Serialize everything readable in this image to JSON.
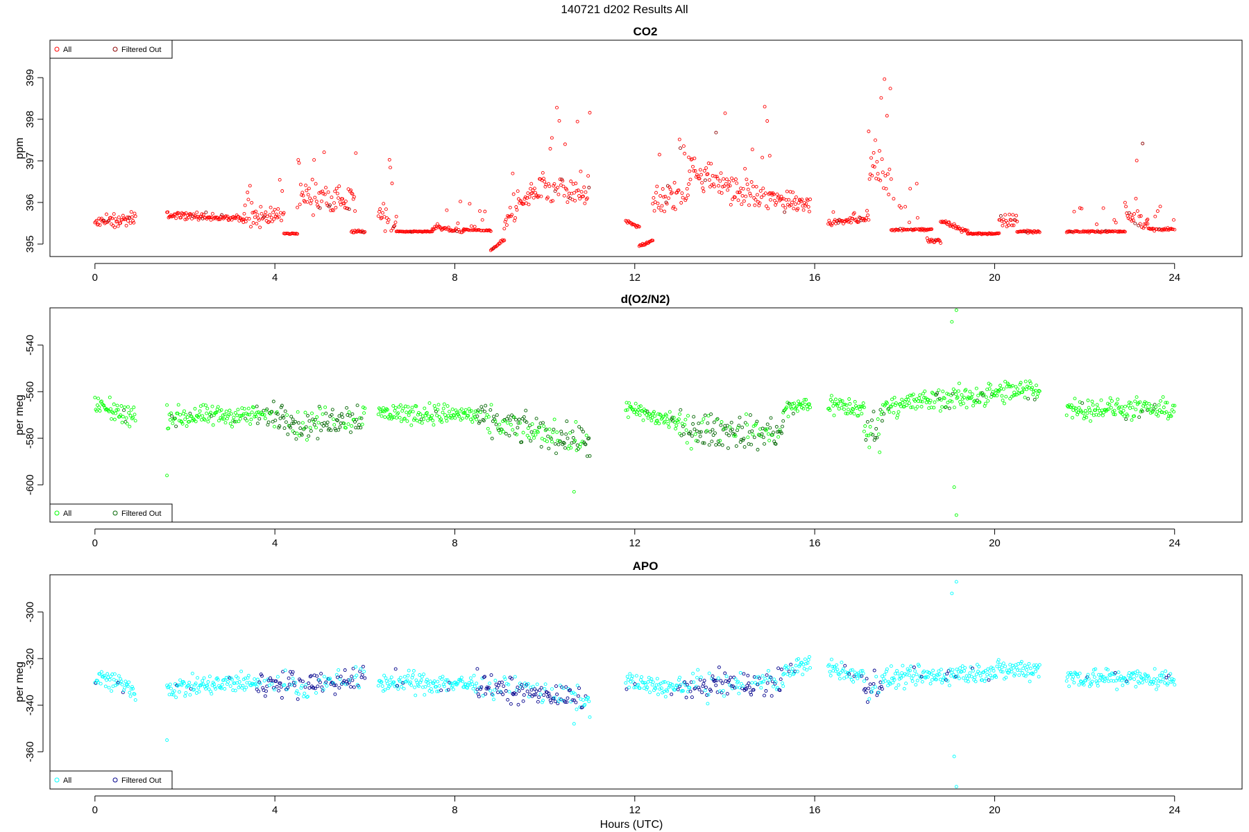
{
  "page_title": "140721   d202   Results All",
  "x_axis_label": "Hours (UTC)",
  "colors": {
    "co2_all": "#ff0000",
    "co2_filtered": "#8b0000",
    "o2_all": "#00ff00",
    "o2_filtered": "#006400",
    "apo_all": "#00ffff",
    "apo_filtered": "#00008b"
  },
  "chart_data": [
    {
      "type": "scatter",
      "title": "CO2",
      "ylabel": "ppm",
      "xlim": [
        -1,
        25.5
      ],
      "ylim": [
        394.7,
        399.9
      ],
      "xticks": [
        0,
        4,
        8,
        12,
        16,
        20,
        24
      ],
      "yticks": [
        395,
        396,
        397,
        398,
        399
      ],
      "legend": [
        "All",
        "Filtered Out"
      ],
      "legend_position": "top-left",
      "segments": [
        {
          "x": [
            0.0,
            0.9
          ],
          "y0": 395.5,
          "y1": 395.6,
          "noise": 0.25,
          "spike": 0.15,
          "filtered": false
        },
        {
          "x": [
            1.6,
            3.3
          ],
          "y0": 395.7,
          "y1": 395.6,
          "noise": 0.12,
          "spike": 0.1,
          "filtered": false
        },
        {
          "x": [
            3.3,
            4.2
          ],
          "y0": 395.6,
          "y1": 395.7,
          "noise": 0.35,
          "spike": 1.2,
          "filtered": false
        },
        {
          "x": [
            4.2,
            4.5
          ],
          "y0": 395.25,
          "y1": 395.25,
          "noise": 0.02,
          "spike": 0,
          "filtered": false
        },
        {
          "x": [
            4.5,
            5.8
          ],
          "y0": 396.2,
          "y1": 396.0,
          "noise": 0.55,
          "spike": 1.4,
          "filtered": false
        },
        {
          "x": [
            5.7,
            6.0
          ],
          "y0": 395.3,
          "y1": 395.3,
          "noise": 0.05,
          "spike": 0,
          "filtered": false
        },
        {
          "x": [
            6.3,
            6.7
          ],
          "y0": 395.8,
          "y1": 395.4,
          "noise": 0.5,
          "spike": 1.8,
          "filtered": false
        },
        {
          "x": [
            6.7,
            7.5
          ],
          "y0": 395.3,
          "y1": 395.3,
          "noise": 0.02,
          "spike": 0,
          "filtered": false
        },
        {
          "x": [
            7.5,
            8.2
          ],
          "y0": 395.4,
          "y1": 395.3,
          "noise": 0.08,
          "spike": 0.8,
          "filtered": false
        },
        {
          "x": [
            8.2,
            8.8
          ],
          "y0": 395.35,
          "y1": 395.32,
          "noise": 0.02,
          "spike": 0.7,
          "filtered": false
        },
        {
          "x": [
            8.8,
            9.1
          ],
          "y0": 394.85,
          "y1": 395.1,
          "noise": 0.05,
          "spike": 0,
          "filtered": false
        },
        {
          "x": [
            9.1,
            9.7
          ],
          "y0": 395.5,
          "y1": 396.2,
          "noise": 0.35,
          "spike": 0.8,
          "filtered": false
        },
        {
          "x": [
            9.7,
            11.0
          ],
          "y0": 396.3,
          "y1": 396.2,
          "noise": 0.6,
          "spike": 2.3,
          "filtered": false
        },
        {
          "x": [
            11.8,
            12.1
          ],
          "y0": 395.55,
          "y1": 395.4,
          "noise": 0.05,
          "spike": 0,
          "filtered": false
        },
        {
          "x": [
            12.1,
            12.4
          ],
          "y0": 394.95,
          "y1": 395.1,
          "noise": 0.05,
          "spike": 0,
          "filtered": false
        },
        {
          "x": [
            12.4,
            13.2
          ],
          "y0": 396.0,
          "y1": 396.2,
          "noise": 0.55,
          "spike": 1.4,
          "filtered": false
        },
        {
          "x": [
            13.2,
            15.0
          ],
          "y0": 396.8,
          "y1": 396.0,
          "noise": 0.55,
          "spike": 2.3,
          "filtered": false
        },
        {
          "x": [
            15.0,
            15.9
          ],
          "y0": 396.1,
          "y1": 396.0,
          "noise": 0.45,
          "spike": 0.7,
          "filtered": false
        },
        {
          "x": [
            16.3,
            17.2
          ],
          "y0": 395.5,
          "y1": 395.6,
          "noise": 0.1,
          "spike": 0.3,
          "filtered": false
        },
        {
          "x": [
            17.2,
            17.7
          ],
          "y0": 396.8,
          "y1": 396.5,
          "noise": 0.7,
          "spike": 2.7,
          "filtered": false
        },
        {
          "x": [
            17.7,
            18.6
          ],
          "y0": 395.35,
          "y1": 395.35,
          "noise": 0.05,
          "spike": 1.2,
          "filtered": false
        },
        {
          "x": [
            18.5,
            18.8
          ],
          "y0": 395.1,
          "y1": 395.05,
          "noise": 0.1,
          "spike": 0,
          "filtered": false
        },
        {
          "x": [
            18.8,
            19.4
          ],
          "y0": 395.55,
          "y1": 395.3,
          "noise": 0.1,
          "spike": 0,
          "filtered": false
        },
        {
          "x": [
            19.4,
            20.1
          ],
          "y0": 395.25,
          "y1": 395.25,
          "noise": 0.03,
          "spike": 0,
          "filtered": false
        },
        {
          "x": [
            20.1,
            20.5
          ],
          "y0": 395.5,
          "y1": 395.6,
          "noise": 0.25,
          "spike": 1.1,
          "filtered": false
        },
        {
          "x": [
            20.5,
            21.0
          ],
          "y0": 395.3,
          "y1": 395.3,
          "noise": 0.05,
          "spike": 0,
          "filtered": false
        },
        {
          "x": [
            21.6,
            22.9
          ],
          "y0": 395.3,
          "y1": 395.3,
          "noise": 0.03,
          "spike": 0.6,
          "filtered": false
        },
        {
          "x": [
            22.9,
            23.4
          ],
          "y0": 395.8,
          "y1": 395.5,
          "noise": 0.4,
          "spike": 3.2,
          "filtered": false
        },
        {
          "x": [
            23.4,
            24.0
          ],
          "y0": 395.35,
          "y1": 395.35,
          "noise": 0.05,
          "spike": 1.3,
          "filtered": false
        }
      ]
    },
    {
      "type": "scatter",
      "title": "d(O2/N2)",
      "ylabel": "per meg",
      "xlim": [
        -1,
        25.5
      ],
      "ylim": [
        -616,
        -524
      ],
      "xticks": [
        0,
        4,
        8,
        12,
        16,
        20,
        24
      ],
      "yticks": [
        -540,
        -560,
        -580,
        -600
      ],
      "legend": [
        "All",
        "Filtered Out"
      ],
      "legend_position": "bottom-left",
      "segments": [
        {
          "x": [
            0.0,
            0.9
          ],
          "y0": -566,
          "y1": -571,
          "noise": 7,
          "spike": 0,
          "filtered": false
        },
        {
          "x": [
            1.6,
            3.6
          ],
          "y0": -571,
          "y1": -570,
          "noise": 7,
          "spike": 0,
          "filtered": false
        },
        {
          "x": [
            3.6,
            4.4
          ],
          "y0": -570,
          "y1": -571,
          "noise": 9,
          "spike": 0,
          "filtered": true
        },
        {
          "x": [
            4.4,
            6.0
          ],
          "y0": -575,
          "y1": -570,
          "noise": 10,
          "spike": 0,
          "filtered": true
        },
        {
          "x": [
            6.3,
            8.5
          ],
          "y0": -569,
          "y1": -570,
          "noise": 7,
          "spike": 0,
          "filtered": false
        },
        {
          "x": [
            8.5,
            11.0
          ],
          "y0": -572,
          "y1": -582,
          "noise": 10,
          "spike": 0,
          "filtered": true
        },
        {
          "x": [
            11.8,
            13.0
          ],
          "y0": -568,
          "y1": -573,
          "noise": 7,
          "spike": 0,
          "filtered": false
        },
        {
          "x": [
            13.0,
            15.3
          ],
          "y0": -576,
          "y1": -578,
          "noise": 11,
          "spike": 0,
          "filtered": true
        },
        {
          "x": [
            15.3,
            15.9
          ],
          "y0": -568,
          "y1": -565,
          "noise": 6,
          "spike": 0,
          "filtered": false
        },
        {
          "x": [
            16.3,
            17.1
          ],
          "y0": -565,
          "y1": -568,
          "noise": 7,
          "spike": 0,
          "filtered": false
        },
        {
          "x": [
            17.1,
            17.5
          ],
          "y0": -578,
          "y1": -575,
          "noise": 13,
          "spike": 0,
          "filtered": true
        },
        {
          "x": [
            17.5,
            21.0
          ],
          "y0": -566,
          "y1": -559,
          "noise": 8,
          "spike": 0,
          "filtered": false
        },
        {
          "x": [
            21.6,
            24.0
          ],
          "y0": -567,
          "y1": -568,
          "noise": 7,
          "spike": 0,
          "filtered": false
        }
      ],
      "extra_points": [
        {
          "x": 19.05,
          "y": -530,
          "filtered": false
        },
        {
          "x": 19.15,
          "y": -525,
          "filtered": false
        },
        {
          "x": 19.1,
          "y": -601,
          "filtered": false
        },
        {
          "x": 19.15,
          "y": -613,
          "filtered": false
        },
        {
          "x": 1.6,
          "y": -596,
          "filtered": false
        },
        {
          "x": 10.65,
          "y": -603,
          "filtered": false
        }
      ]
    },
    {
      "type": "scatter",
      "title": "APO",
      "ylabel": "per meg",
      "xlim": [
        -1,
        25.5
      ],
      "ylim": [
        -376,
        -284
      ],
      "xticks": [
        0,
        4,
        8,
        12,
        16,
        20,
        24
      ],
      "yticks": [
        -300,
        -320,
        -340,
        -360
      ],
      "legend": [
        "All",
        "Filtered Out"
      ],
      "legend_position": "bottom-left",
      "segments": [
        {
          "x": [
            0.0,
            0.9
          ],
          "y0": -328,
          "y1": -333,
          "noise": 7,
          "spike": 0,
          "filtered": false
        },
        {
          "x": [
            1.6,
            3.6
          ],
          "y0": -333,
          "y1": -330,
          "noise": 7,
          "spike": 0,
          "filtered": false
        },
        {
          "x": [
            3.6,
            4.4
          ],
          "y0": -331,
          "y1": -330,
          "noise": 8,
          "spike": 0,
          "filtered": true
        },
        {
          "x": [
            4.4,
            6.0
          ],
          "y0": -332,
          "y1": -328,
          "noise": 8,
          "spike": 0,
          "filtered": true
        },
        {
          "x": [
            6.3,
            8.5
          ],
          "y0": -330,
          "y1": -331,
          "noise": 7,
          "spike": 0,
          "filtered": false
        },
        {
          "x": [
            8.5,
            11.0
          ],
          "y0": -331,
          "y1": -338,
          "noise": 8,
          "spike": 0,
          "filtered": true
        },
        {
          "x": [
            11.8,
            13.0
          ],
          "y0": -330,
          "y1": -333,
          "noise": 6,
          "spike": 0,
          "filtered": false
        },
        {
          "x": [
            13.0,
            15.3
          ],
          "y0": -332,
          "y1": -330,
          "noise": 9,
          "spike": 0,
          "filtered": true
        },
        {
          "x": [
            15.3,
            15.9
          ],
          "y0": -326,
          "y1": -322,
          "noise": 6,
          "spike": 0,
          "filtered": false
        },
        {
          "x": [
            16.3,
            17.1
          ],
          "y0": -324,
          "y1": -328,
          "noise": 6,
          "spike": 0,
          "filtered": false
        },
        {
          "x": [
            17.1,
            17.5
          ],
          "y0": -333,
          "y1": -330,
          "noise": 10,
          "spike": 0,
          "filtered": true
        },
        {
          "x": [
            17.5,
            21.0
          ],
          "y0": -329,
          "y1": -324,
          "noise": 7,
          "spike": 0,
          "filtered": false
        },
        {
          "x": [
            21.6,
            24.0
          ],
          "y0": -328,
          "y1": -329,
          "noise": 7,
          "spike": 0,
          "filtered": false
        }
      ],
      "extra_points": [
        {
          "x": 19.05,
          "y": -292,
          "filtered": false
        },
        {
          "x": 19.15,
          "y": -287,
          "filtered": false
        },
        {
          "x": 19.1,
          "y": -362,
          "filtered": false
        },
        {
          "x": 19.15,
          "y": -375,
          "filtered": false
        },
        {
          "x": 1.6,
          "y": -355,
          "filtered": false
        },
        {
          "x": 10.65,
          "y": -348,
          "filtered": false
        }
      ]
    }
  ]
}
